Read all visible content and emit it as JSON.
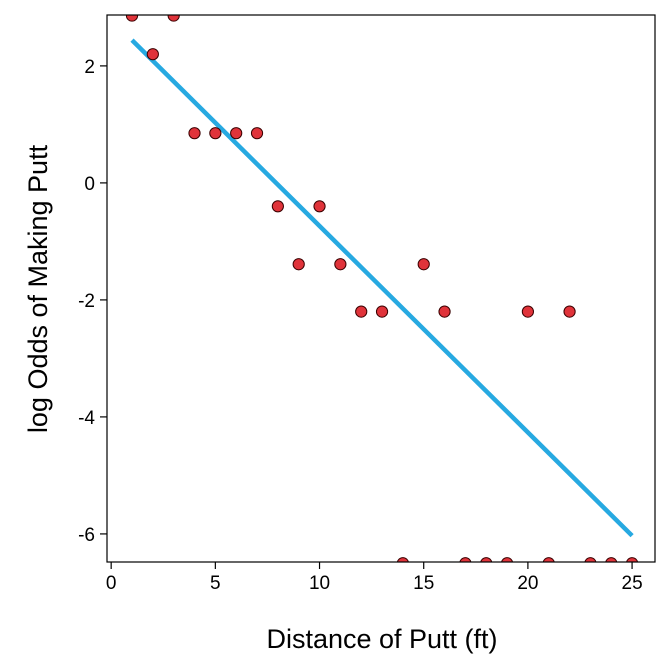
{
  "chart_data": {
    "type": "scatter",
    "xlabel": "Distance of Putt (ft)",
    "ylabel": "log Odds of Making Putt",
    "xlim": [
      -0.2,
      26.1
    ],
    "ylim": [
      -6.48,
      2.87
    ],
    "xticks": [
      0,
      5,
      10,
      15,
      20,
      25
    ],
    "yticks": [
      -6,
      -4,
      -2,
      0,
      2
    ],
    "grid": false,
    "points": [
      {
        "x": 1,
        "y": 2.86
      },
      {
        "x": 2,
        "y": 2.2
      },
      {
        "x": 3,
        "y": 2.86
      },
      {
        "x": 4,
        "y": 0.85
      },
      {
        "x": 5,
        "y": 0.85
      },
      {
        "x": 6,
        "y": 0.85
      },
      {
        "x": 7,
        "y": 0.85
      },
      {
        "x": 8,
        "y": -0.4
      },
      {
        "x": 9,
        "y": -1.39
      },
      {
        "x": 10,
        "y": -0.4
      },
      {
        "x": 11,
        "y": -1.39
      },
      {
        "x": 12,
        "y": -2.2
      },
      {
        "x": 13,
        "y": -2.2
      },
      {
        "x": 14,
        "y": -6.5
      },
      {
        "x": 15,
        "y": -1.39
      },
      {
        "x": 16,
        "y": -2.2
      },
      {
        "x": 17,
        "y": -6.5
      },
      {
        "x": 18,
        "y": -6.5
      },
      {
        "x": 19,
        "y": -6.5
      },
      {
        "x": 20,
        "y": -2.2
      },
      {
        "x": 21,
        "y": -6.5
      },
      {
        "x": 22,
        "y": -2.2
      },
      {
        "x": 23,
        "y": -6.5
      },
      {
        "x": 24,
        "y": -6.5
      },
      {
        "x": 25,
        "y": -6.5
      }
    ],
    "fit_line": {
      "x": [
        1,
        25
      ],
      "y": [
        2.44,
        -6.03
      ]
    },
    "colors": {
      "point_fill": "#e0333a",
      "point_stroke": "#3a0000",
      "line": "#27a9e1",
      "axis": "#000000"
    }
  }
}
